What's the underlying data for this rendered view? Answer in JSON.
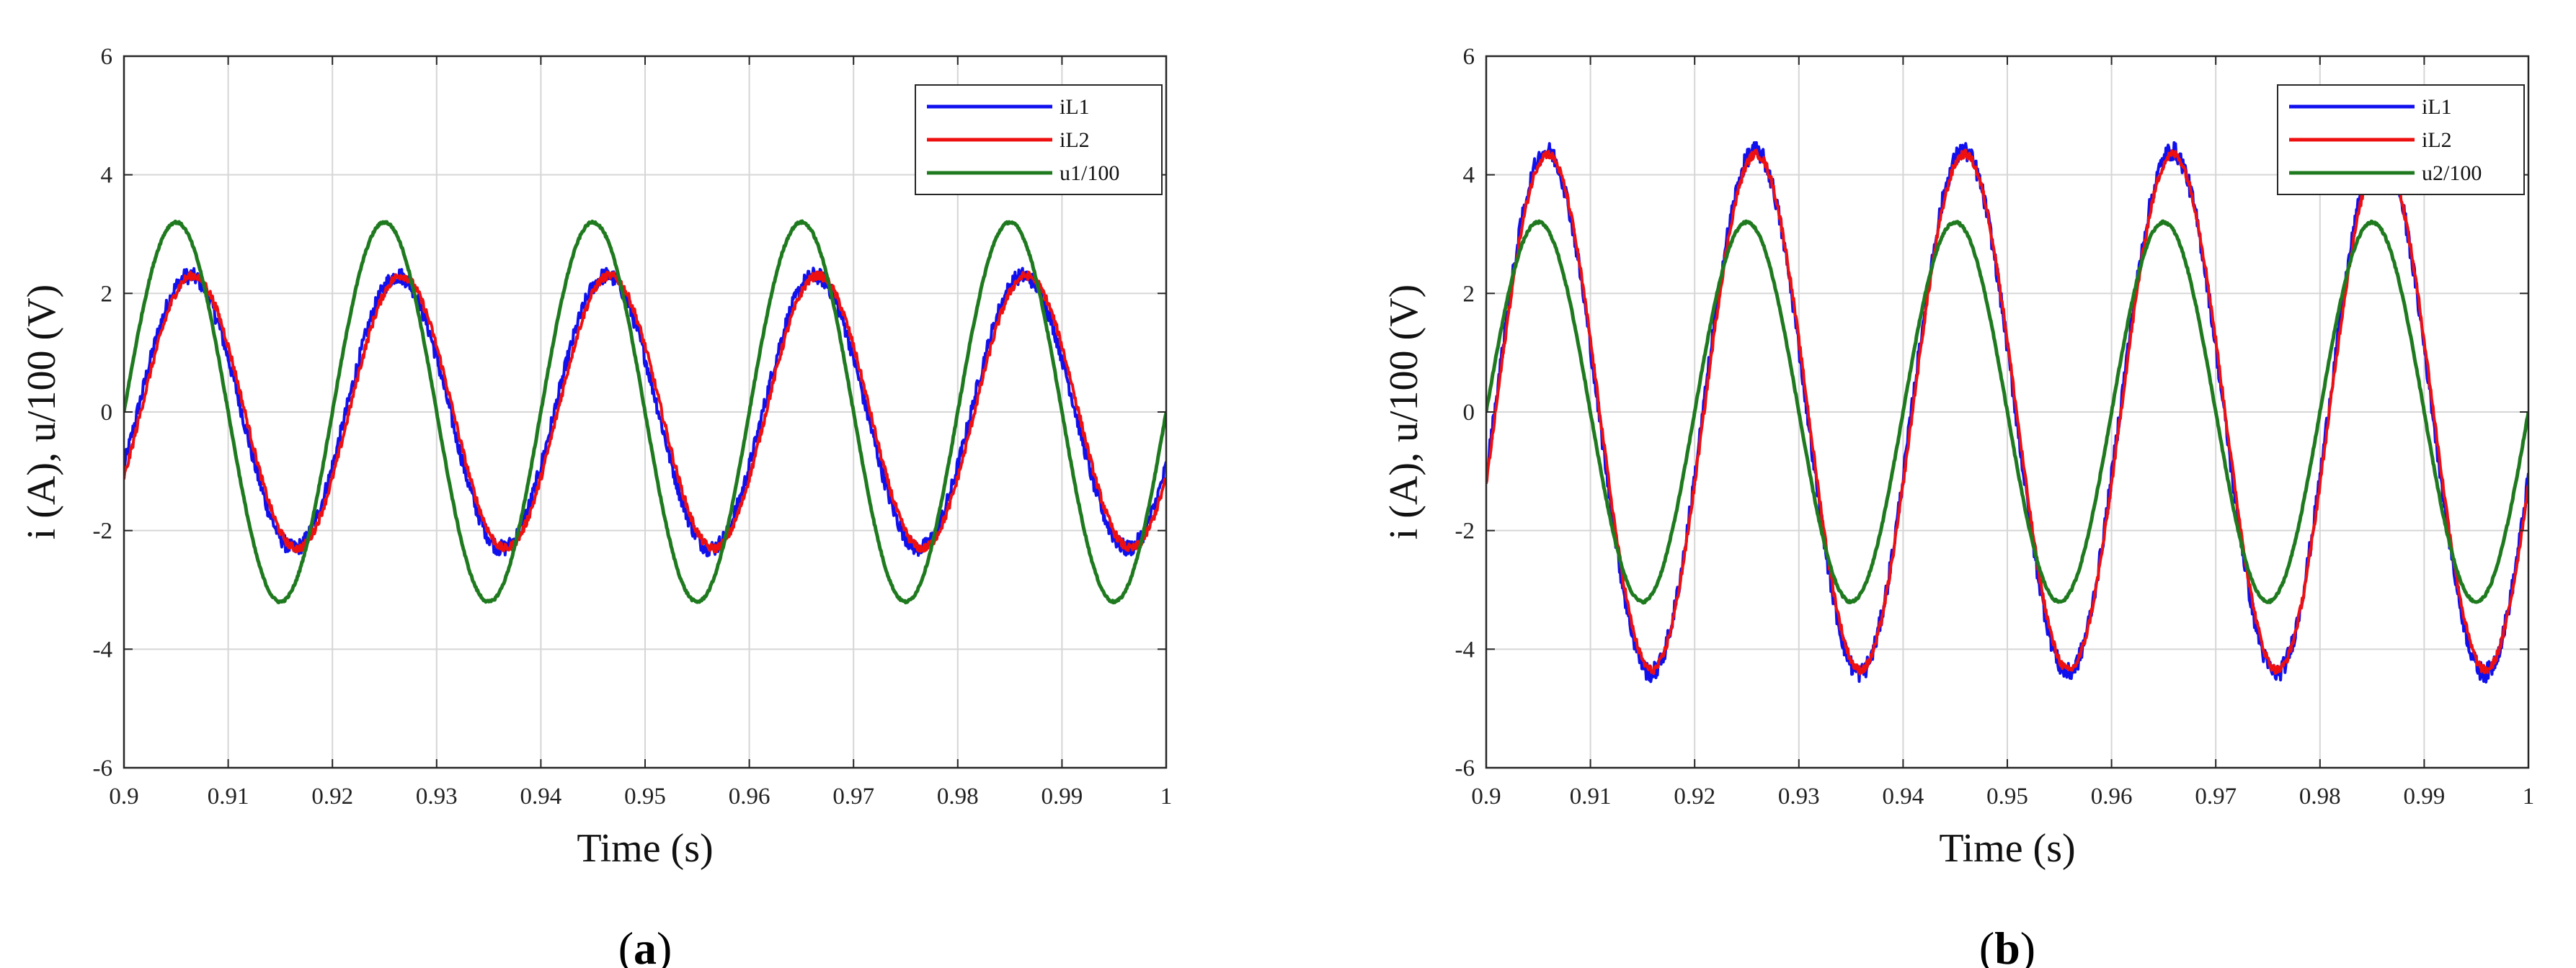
{
  "chart_data": [
    {
      "type": "line",
      "panel_label": "a",
      "xlabel": "Time (s)",
      "ylabel": "i (A), u/100 (V)",
      "xlim": [
        0.9,
        1.0
      ],
      "ylim": [
        -6,
        6
      ],
      "xticks": [
        0.9,
        0.91,
        0.92,
        0.93,
        0.94,
        0.95,
        0.96,
        0.97,
        0.98,
        0.99,
        1.0
      ],
      "xtick_labels": [
        "0.9",
        "0.91",
        "0.92",
        "0.93",
        "0.94",
        "0.95",
        "0.96",
        "0.97",
        "0.98",
        "0.99",
        "1"
      ],
      "yticks": [
        -6,
        -4,
        -2,
        0,
        2,
        4,
        6
      ],
      "ytick_labels": [
        "-6",
        "-4",
        "-2",
        "0",
        "2",
        "4",
        "6"
      ],
      "grid": true,
      "legend_position": "top-right",
      "frequency_hz": 50,
      "series": [
        {
          "name": "iL1",
          "color": "#1010ee",
          "amplitude": 2.3,
          "phase_delay_ms": 1.3,
          "ripple": 0.14
        },
        {
          "name": "iL2",
          "color": "#ee1010",
          "amplitude": 2.3,
          "phase_delay_ms": 1.6,
          "ripple": 0.07
        },
        {
          "name": "u1/100",
          "color": "#1f7a1f",
          "amplitude": 3.2,
          "phase_delay_ms": 0.0,
          "ripple": 0.02
        }
      ]
    },
    {
      "type": "line",
      "panel_label": "b",
      "xlabel": "Time (s)",
      "ylabel": "i (A), u/100 (V)",
      "xlim": [
        0.9,
        1.0
      ],
      "ylim": [
        -6,
        6
      ],
      "xticks": [
        0.9,
        0.91,
        0.92,
        0.93,
        0.94,
        0.95,
        0.96,
        0.97,
        0.98,
        0.99,
        1.0
      ],
      "xtick_labels": [
        "0.9",
        "0.91",
        "0.92",
        "0.93",
        "0.94",
        "0.95",
        "0.96",
        "0.97",
        "0.98",
        "0.99",
        "1"
      ],
      "yticks": [
        -6,
        -4,
        -2,
        0,
        2,
        4,
        6
      ],
      "ytick_labels": [
        "-6",
        "-4",
        "-2",
        "0",
        "2",
        "4",
        "6"
      ],
      "grid": true,
      "legend_position": "top-right",
      "frequency_hz": 50,
      "series": [
        {
          "name": "iL1",
          "color": "#1010ee",
          "amplitude": 4.4,
          "phase_delay_ms": 0.8,
          "ripple": 0.16
        },
        {
          "name": "iL2",
          "color": "#ee1010",
          "amplitude": 4.35,
          "phase_delay_ms": 0.9,
          "ripple": 0.07
        },
        {
          "name": "u2/100",
          "color": "#1f7a1f",
          "amplitude": 3.2,
          "phase_delay_ms": 0.0,
          "ripple": 0.02
        }
      ]
    }
  ]
}
